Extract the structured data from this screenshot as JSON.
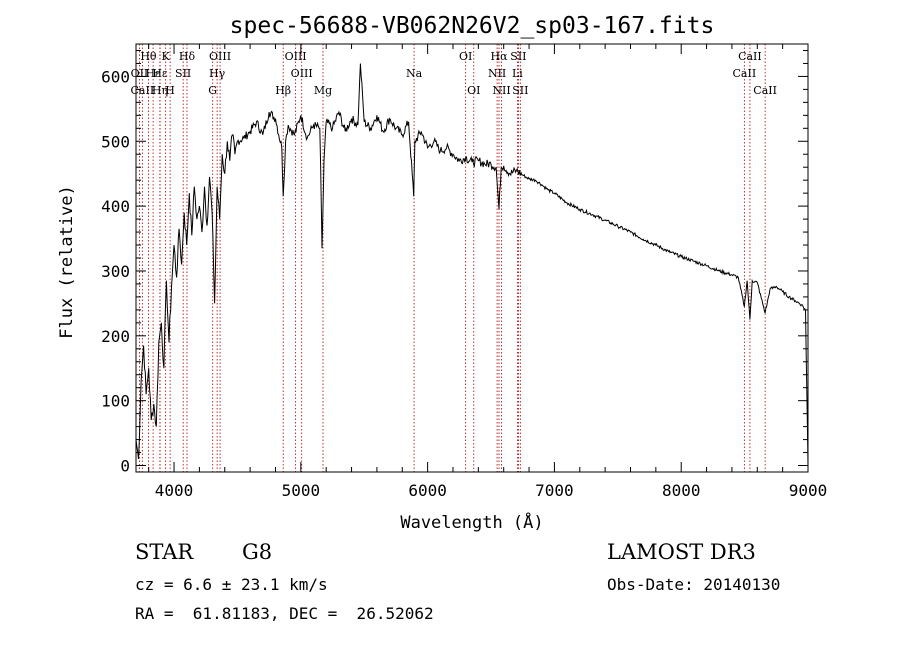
{
  "chart_data": {
    "type": "line",
    "title": "spec-56688-VB062N26V2_sp03-167.fits",
    "xlabel": "Wavelength (Å)",
    "ylabel": "Flux (relative)",
    "xlim": [
      3700,
      9000
    ],
    "ylim": [
      -10,
      650
    ],
    "xticks": [
      4000,
      5000,
      6000,
      7000,
      8000,
      9000
    ],
    "yticks": [
      0,
      100,
      200,
      300,
      400,
      500,
      600
    ],
    "grid": false,
    "series": [
      {
        "name": "flux",
        "x": [
          3700,
          3720,
          3740,
          3760,
          3780,
          3800,
          3820,
          3840,
          3860,
          3880,
          3900,
          3920,
          3940,
          3960,
          3980,
          4000,
          4020,
          4040,
          4060,
          4080,
          4100,
          4120,
          4140,
          4160,
          4180,
          4200,
          4220,
          4240,
          4260,
          4280,
          4300,
          4320,
          4340,
          4360,
          4380,
          4400,
          4420,
          4440,
          4460,
          4480,
          4500,
          4550,
          4600,
          4650,
          4700,
          4750,
          4800,
          4850,
          4861,
          4880,
          4900,
          4950,
          5000,
          5050,
          5100,
          5150,
          5167,
          5183,
          5200,
          5250,
          5300,
          5350,
          5400,
          5450,
          5470,
          5500,
          5550,
          5600,
          5650,
          5700,
          5750,
          5800,
          5850,
          5890,
          5900,
          5950,
          6000,
          6050,
          6100,
          6150,
          6200,
          6250,
          6300,
          6350,
          6400,
          6450,
          6500,
          6540,
          6563,
          6580,
          6600,
          6650,
          6700,
          6750,
          6800,
          6850,
          6900,
          6950,
          7000,
          7100,
          7200,
          7300,
          7400,
          7500,
          7600,
          7700,
          7800,
          7900,
          8000,
          8100,
          8200,
          8300,
          8400,
          8450,
          8498,
          8520,
          8542,
          8560,
          8600,
          8662,
          8700,
          8750,
          8800,
          8850,
          8900,
          8950,
          8980,
          9000
        ],
        "values": [
          40,
          10,
          130,
          185,
          110,
          150,
          70,
          95,
          60,
          190,
          220,
          150,
          285,
          190,
          275,
          340,
          290,
          365,
          310,
          390,
          340,
          420,
          355,
          430,
          380,
          400,
          360,
          430,
          370,
          445,
          390,
          250,
          430,
          380,
          480,
          450,
          500,
          470,
          510,
          480,
          500,
          505,
          515,
          530,
          510,
          545,
          535,
          490,
          415,
          500,
          525,
          510,
          540,
          505,
          525,
          520,
          335,
          470,
          530,
          520,
          545,
          515,
          535,
          525,
          620,
          530,
          520,
          540,
          515,
          535,
          520,
          510,
          530,
          415,
          500,
          515,
          490,
          500,
          485,
          490,
          480,
          470,
          475,
          468,
          470,
          465,
          465,
          460,
          395,
          460,
          462,
          450,
          455,
          448,
          442,
          440,
          433,
          425,
          420,
          405,
          395,
          387,
          378,
          369,
          360,
          349,
          340,
          330,
          322,
          315,
          308,
          300,
          294,
          290,
          245,
          285,
          225,
          285,
          282,
          235,
          272,
          276,
          268,
          260,
          254,
          248,
          240,
          0
        ]
      }
    ],
    "lines": [
      {
        "name": "Hθ",
        "wl": 3798,
        "row": 1
      },
      {
        "name": "OII",
        "wl": 3727,
        "row": 2
      },
      {
        "name": "Hε",
        "wl": 3835,
        "row": 2
      },
      {
        "name": "CaII",
        "wl": 3750,
        "row": 3
      },
      {
        "name": "Hη",
        "wl": 3889,
        "row": 3
      },
      {
        "name": "K",
        "wl": 3934,
        "row": 1
      },
      {
        "name": "Hε",
        "wl": 3889,
        "row": 2
      },
      {
        "name": "H",
        "wl": 3969,
        "row": 3
      },
      {
        "name": "Hδ",
        "wl": 4102,
        "row": 1
      },
      {
        "name": "SII",
        "wl": 4072,
        "row": 2
      },
      {
        "name": "OIII",
        "wl": 4363,
        "row": 1
      },
      {
        "name": "Hγ",
        "wl": 4340,
        "row": 2
      },
      {
        "name": "G",
        "wl": 4305,
        "row": 3
      },
      {
        "name": "OIII",
        "wl": 4959,
        "row": 1
      },
      {
        "name": "OIII",
        "wl": 5007,
        "row": 2
      },
      {
        "name": "Hβ",
        "wl": 4861,
        "row": 3
      },
      {
        "name": "Mg",
        "wl": 5175,
        "row": 3
      },
      {
        "name": "Na",
        "wl": 5893,
        "row": 2
      },
      {
        "name": "OI",
        "wl": 6300,
        "row": 1
      },
      {
        "name": "OI",
        "wl": 6364,
        "row": 3
      },
      {
        "name": "Hα",
        "wl": 6563,
        "row": 1
      },
      {
        "name": "NII",
        "wl": 6548,
        "row": 2
      },
      {
        "name": "NII",
        "wl": 6583,
        "row": 3
      },
      {
        "name": "SII",
        "wl": 6716,
        "row": 1
      },
      {
        "name": "Li",
        "wl": 6708,
        "row": 2
      },
      {
        "name": "SII",
        "wl": 6731,
        "row": 3
      },
      {
        "name": "CaII",
        "wl": 8542,
        "row": 1
      },
      {
        "name": "CaII",
        "wl": 8498,
        "row": 2
      },
      {
        "name": "CaII",
        "wl": 8662,
        "row": 3
      }
    ]
  },
  "info": {
    "object_class": "STAR",
    "subclass": "G8",
    "survey": "LAMOST DR3",
    "cz": "cz = 6.6 ± 23.1 km/s",
    "obs_date": "Obs-Date: 20140130",
    "coords": "RA =  61.81183, DEC =  26.52062"
  },
  "colors": {
    "spectrum": "#000000",
    "line_markers": "#aa0000"
  }
}
